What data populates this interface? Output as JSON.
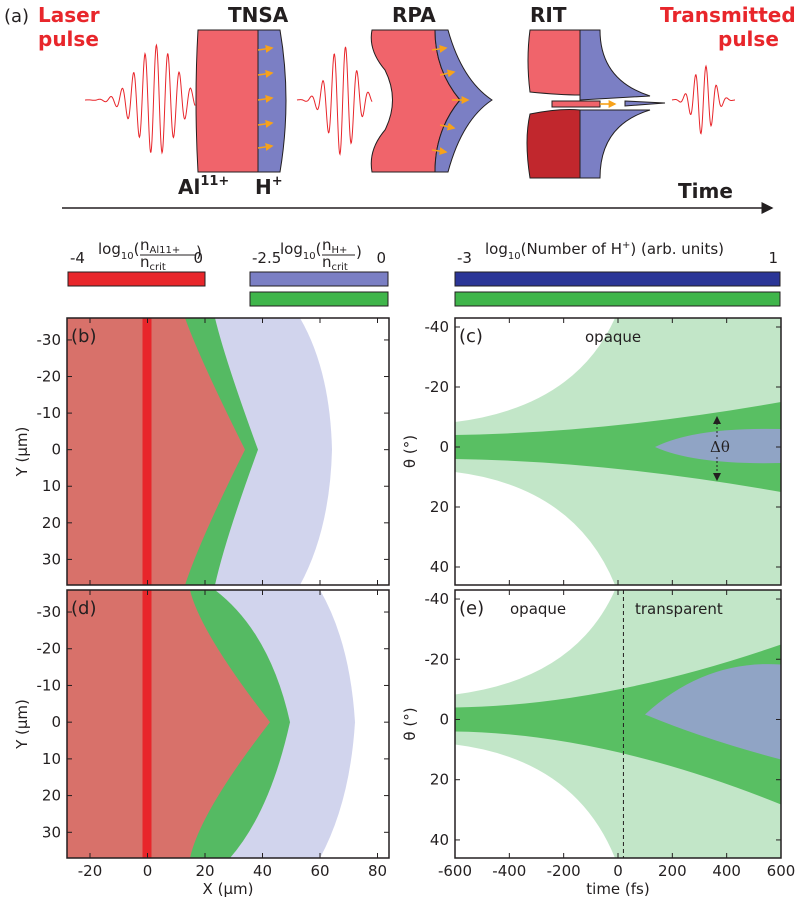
{
  "panel_a": {
    "label": "(a)",
    "laser": [
      "Laser",
      "pulse"
    ],
    "stages": [
      "TNSA",
      "RPA",
      "RIT"
    ],
    "transmitted": [
      "Transmitted",
      "pulse"
    ],
    "ion_al": {
      "base": "Al",
      "sup": "11+"
    },
    "ion_h": {
      "base": "H",
      "sup": "+"
    },
    "time": "Time"
  },
  "colorbars": [
    {
      "min": -4,
      "max": 0,
      "log": "log",
      "log_sub": "10",
      "open": "(",
      "numerator": "n",
      "numerator_sub": "Al11+",
      "denominator": "n",
      "denominator_sub": "crit",
      "close": ")"
    },
    {
      "min": -2.5,
      "max": 0,
      "log": "log",
      "log_sub": "10",
      "open": "(",
      "numerator": "n",
      "numerator_sub": "H+",
      "denominator": "n",
      "denominator_sub": "crit",
      "close": ")"
    },
    {
      "min": -3,
      "max": 1,
      "log": "log",
      "log_sub": "10",
      "text": "(Number of H",
      "sup": "+",
      "rest": ") (arb. units)"
    }
  ],
  "panels": [
    {
      "label": "(b)",
      "kind": "space",
      "xlim": [
        -28,
        84
      ],
      "ylim": [
        -36,
        37
      ],
      "xticks": [
        -20,
        0,
        20,
        40,
        60,
        80
      ],
      "yticks": [
        -30,
        -20,
        -10,
        0,
        10,
        20,
        30
      ],
      "ylabel": "Y (µm)",
      "x_tick_labels": false
    },
    {
      "label": "(c)",
      "kind": "angle",
      "xlim": [
        -600,
        600
      ],
      "ylim": [
        -43,
        46
      ],
      "xticks": [
        -600,
        -400,
        -200,
        0,
        200,
        400,
        600
      ],
      "yticks": [
        -40,
        -20,
        0,
        20,
        40
      ],
      "ylabel": "θ (°)",
      "x_tick_labels": false,
      "annotations": [
        "opaque",
        "Δθ"
      ]
    },
    {
      "label": "(d)",
      "kind": "space",
      "xlim": [
        -28,
        84
      ],
      "ylim": [
        -36,
        37
      ],
      "xticks": [
        -20,
        0,
        20,
        40,
        60,
        80
      ],
      "yticks": [
        -30,
        -20,
        -10,
        0,
        10,
        20,
        30
      ],
      "ylabel": "Y (µm)",
      "xlabel": "X (µm)",
      "x_tick_labels": true
    },
    {
      "label": "(e)",
      "kind": "angle",
      "xlim": [
        -600,
        600
      ],
      "ylim": [
        -43,
        46
      ],
      "xticks": [
        -600,
        -400,
        -200,
        0,
        200,
        400,
        600
      ],
      "yticks": [
        -40,
        -20,
        0,
        20,
        40
      ],
      "ylabel": "θ (°)",
      "xlabel": "time (fs)",
      "x_tick_labels": true,
      "dashed_time": 20,
      "annotations": [
        "opaque",
        "transparent"
      ]
    }
  ]
}
